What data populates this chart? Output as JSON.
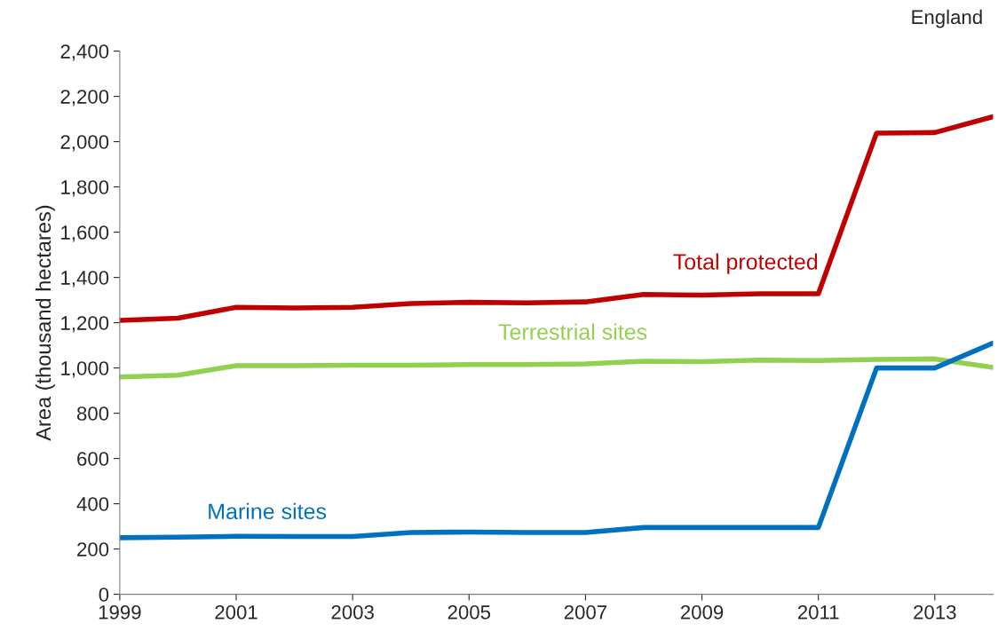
{
  "chart_data": {
    "type": "line",
    "ylabel": "Area (thousand hectares)",
    "annotations": [
      "England"
    ],
    "x": [
      1999,
      2000,
      2001,
      2002,
      2003,
      2004,
      2005,
      2006,
      2007,
      2008,
      2009,
      2010,
      2011,
      2012,
      2013,
      2014
    ],
    "xlim": [
      1999,
      2014
    ],
    "xticks": [
      1999,
      2001,
      2003,
      2005,
      2007,
      2009,
      2011,
      2013
    ],
    "ylim": [
      0,
      2400
    ],
    "yticks": [
      {
        "value": 0,
        "label": "0"
      },
      {
        "value": 200,
        "label": "200"
      },
      {
        "value": 400,
        "label": "400"
      },
      {
        "value": 600,
        "label": "600"
      },
      {
        "value": 800,
        "label": "800"
      },
      {
        "value": 1000,
        "label": "1,000"
      },
      {
        "value": 1200,
        "label": "1,200"
      },
      {
        "value": 1400,
        "label": "1,400"
      },
      {
        "value": 1600,
        "label": "1,600"
      },
      {
        "value": 1800,
        "label": "1,800"
      },
      {
        "value": 2000,
        "label": "2,000"
      },
      {
        "value": 2200,
        "label": "2,200"
      },
      {
        "value": 2400,
        "label": "2,400"
      }
    ],
    "grid": false,
    "legend": false,
    "series": [
      {
        "name": "Total protected",
        "color": "#c00000",
        "values": [
          1210,
          1220,
          1268,
          1265,
          1268,
          1285,
          1290,
          1288,
          1292,
          1325,
          1322,
          1328,
          1328,
          2038,
          2040,
          2110
        ]
      },
      {
        "name": "Terrestrial sites",
        "color": "#92d050",
        "values": [
          960,
          968,
          1010,
          1010,
          1012,
          1012,
          1015,
          1015,
          1018,
          1030,
          1028,
          1035,
          1033,
          1038,
          1040,
          1002
        ]
      },
      {
        "name": "Marine sites",
        "color": "#0070c0",
        "values": [
          250,
          252,
          256,
          255,
          255,
          273,
          275,
          273,
          273,
          295,
          295,
          295,
          295,
          1000,
          1000,
          1110
        ]
      }
    ]
  }
}
